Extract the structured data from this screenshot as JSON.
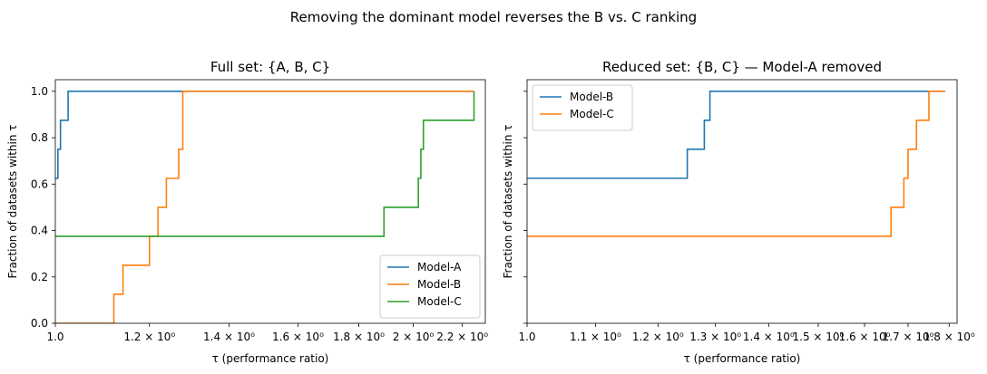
{
  "suptitle": "Removing the dominant model reverses the B vs. C ranking",
  "chart_data": [
    {
      "type": "line",
      "step": true,
      "title": "Full set: {A, B, C}",
      "xlabel": "τ (performance ratio)",
      "ylabel": "Fraction of datasets within τ",
      "xscale": "log",
      "xlim": [
        1.0,
        2.3
      ],
      "ylim": [
        0.0,
        1.05
      ],
      "xticks": [
        {
          "value": 1.0,
          "label": "1.0"
        },
        {
          "value": 1.2,
          "label": "1.2 × 10⁰"
        },
        {
          "value": 1.4,
          "label": "1.4 × 10⁰"
        },
        {
          "value": 1.6,
          "label": "1.6 × 10⁰"
        },
        {
          "value": 1.8,
          "label": "1.8 × 10⁰"
        },
        {
          "value": 2.0,
          "label": "2 × 10⁰"
        },
        {
          "value": 2.2,
          "label": "2.2 × 10⁰"
        }
      ],
      "yticks": [
        "0.0",
        "0.2",
        "0.4",
        "0.6",
        "0.8",
        "1.0"
      ],
      "legend_position": "lower-right",
      "grid": false,
      "series": [
        {
          "name": "Model-A",
          "color": "#1f77b4",
          "x": [
            1.0,
            1.005,
            1.01,
            1.025,
            2.25
          ],
          "y": [
            0.625,
            0.75,
            0.875,
            1.0,
            1.0
          ]
        },
        {
          "name": "Model-B",
          "color": "#ff7f0e",
          "x": [
            1.0,
            1.12,
            1.14,
            1.2,
            1.22,
            1.24,
            1.27,
            1.28,
            2.25
          ],
          "y": [
            0.0,
            0.125,
            0.25,
            0.375,
            0.5,
            0.625,
            0.75,
            1.0,
            1.0
          ]
        },
        {
          "name": "Model-C",
          "color": "#2ca02c",
          "x": [
            1.0,
            1.89,
            2.02,
            2.03,
            2.04,
            2.25
          ],
          "y": [
            0.375,
            0.5,
            0.625,
            0.75,
            0.875,
            1.0
          ]
        }
      ]
    },
    {
      "type": "line",
      "step": true,
      "title": "Reduced set: {B, C} — Model-A removed",
      "xlabel": "τ (performance ratio)",
      "ylabel": "Fraction of datasets within τ",
      "xscale": "log",
      "xlim": [
        1.0,
        1.82
      ],
      "ylim": [
        0.0,
        1.05
      ],
      "xticks": [
        {
          "value": 1.0,
          "label": "1.0"
        },
        {
          "value": 1.1,
          "label": "1.1 × 10⁰"
        },
        {
          "value": 1.2,
          "label": "1.2 × 10⁰"
        },
        {
          "value": 1.3,
          "label": "1.3 × 10⁰"
        },
        {
          "value": 1.4,
          "label": "1.4 × 10⁰"
        },
        {
          "value": 1.5,
          "label": "1.5 × 10⁰"
        },
        {
          "value": 1.6,
          "label": "1.6 × 10⁰"
        },
        {
          "value": 1.7,
          "label": "1.7 × 10⁰"
        },
        {
          "value": 1.8,
          "label": "1.8 × 10⁰"
        }
      ],
      "yticks": [
        "",
        "",
        "",
        "",
        "",
        ""
      ],
      "legend_position": "upper-left",
      "grid": false,
      "series": [
        {
          "name": "Model-B",
          "color": "#1f77b4",
          "x": [
            1.0,
            1.25,
            1.28,
            1.29,
            1.79
          ],
          "y": [
            0.625,
            0.75,
            0.875,
            1.0,
            1.0
          ]
        },
        {
          "name": "Model-C",
          "color": "#ff7f0e",
          "x": [
            1.0,
            1.66,
            1.69,
            1.7,
            1.72,
            1.75,
            1.79
          ],
          "y": [
            0.375,
            0.5,
            0.625,
            0.75,
            0.875,
            1.0,
            1.0
          ]
        }
      ]
    }
  ]
}
